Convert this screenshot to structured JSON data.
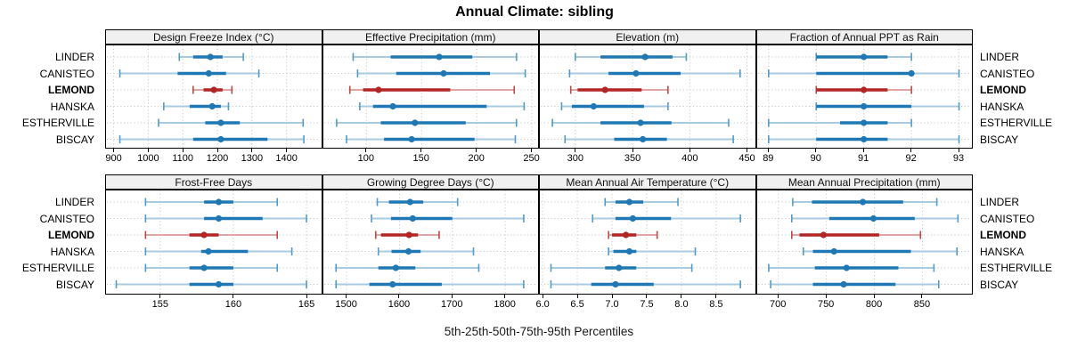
{
  "title": "Annual Climate: sibling",
  "caption": "5th-25th-50th-75th-95th Percentiles",
  "sites": [
    "LINDER",
    "CANISTEO",
    "LEMOND",
    "HANSKA",
    "ESTHERVILLE",
    "BISCAY"
  ],
  "highlight_site": "LEMOND",
  "colors": {
    "blue": "#1f78b4",
    "blue_light": "#a9cbe2",
    "blue_cap": "#4f9bcb",
    "red": "#b32424",
    "red_light": "#dfa6a3",
    "red_cap": "#bb4a44",
    "gridline": "#c9c9c9",
    "strip_bg": "#f0f0f0",
    "border": "#000000"
  },
  "percentiles_shown": [
    "5th",
    "25th",
    "50th",
    "75th",
    "95th"
  ],
  "chart_data": [
    {
      "type": "dotplot-percentile",
      "row": 0,
      "col": 0,
      "title": "Design Freeze Index (°C)",
      "ticks": [
        900,
        1000,
        1100,
        1200,
        1300,
        1400
      ],
      "tick_decimals": 0,
      "xlim": [
        878,
        1500
      ],
      "series": [
        {
          "name": "LINDER",
          "values": [
            1090,
            1130,
            1180,
            1215,
            1275
          ]
        },
        {
          "name": "CANISTEO",
          "values": [
            918,
            1085,
            1175,
            1225,
            1320
          ]
        },
        {
          "name": "LEMOND",
          "values": [
            1130,
            1160,
            1190,
            1215,
            1242
          ]
        },
        {
          "name": "HANSKA",
          "values": [
            1045,
            1120,
            1185,
            1210,
            1232
          ]
        },
        {
          "name": "ESTHERVILLE",
          "values": [
            1030,
            1165,
            1210,
            1265,
            1448
          ]
        },
        {
          "name": "BISCAY",
          "values": [
            918,
            1130,
            1210,
            1345,
            1450
          ]
        }
      ]
    },
    {
      "type": "dotplot-percentile",
      "row": 0,
      "col": 1,
      "title": "Effective Precipitation (mm)",
      "ticks": [
        100,
        150,
        200,
        250
      ],
      "tick_decimals": 0,
      "xlim": [
        61,
        256
      ],
      "series": [
        {
          "name": "LINDER",
          "values": [
            88,
            122,
            166,
            196,
            236
          ]
        },
        {
          "name": "CANISTEO",
          "values": [
            92,
            127,
            170,
            212,
            244
          ]
        },
        {
          "name": "LEMOND",
          "values": [
            85,
            97,
            111,
            176,
            234
          ]
        },
        {
          "name": "HANSKA",
          "values": [
            94,
            106,
            124,
            209,
            243
          ]
        },
        {
          "name": "ESTHERVILLE",
          "values": [
            73,
            113,
            144,
            190,
            236
          ]
        },
        {
          "name": "BISCAY",
          "values": [
            82,
            116,
            141,
            198,
            235
          ]
        }
      ]
    },
    {
      "type": "dotplot-percentile",
      "row": 0,
      "col": 2,
      "title": "Elevation (m)",
      "ticks": [
        300,
        350,
        400,
        450
      ],
      "tick_decimals": 0,
      "xlim": [
        269,
        457
      ],
      "series": [
        {
          "name": "LINDER",
          "values": [
            300,
            322,
            361,
            385,
            397
          ]
        },
        {
          "name": "CANISTEO",
          "values": [
            295,
            329,
            353,
            392,
            444
          ]
        },
        {
          "name": "LEMOND",
          "values": [
            296,
            302,
            326,
            358,
            381
          ]
        },
        {
          "name": "HANSKA",
          "values": [
            288,
            297,
            316,
            360,
            381
          ]
        },
        {
          "name": "ESTHERVILLE",
          "values": [
            280,
            322,
            357,
            384,
            434
          ]
        },
        {
          "name": "BISCAY",
          "values": [
            291,
            334,
            359,
            380,
            438
          ]
        }
      ]
    },
    {
      "type": "dotplot-percentile",
      "row": 0,
      "col": 3,
      "title": "Fraction of Annual PPT as Rain",
      "ticks": [
        89,
        90,
        91,
        92,
        93
      ],
      "tick_decimals": 0,
      "xlim": [
        88.76,
        93.28
      ],
      "series": [
        {
          "name": "LINDER",
          "values": [
            90,
            90,
            91,
            91.5,
            92
          ]
        },
        {
          "name": "CANISTEO",
          "values": [
            89,
            90,
            92,
            92,
            93
          ]
        },
        {
          "name": "LEMOND",
          "values": [
            90,
            90,
            91,
            91.5,
            92
          ]
        },
        {
          "name": "HANSKA",
          "values": [
            90,
            90,
            91,
            92,
            93
          ]
        },
        {
          "name": "ESTHERVILLE",
          "values": [
            89,
            90.5,
            91,
            91.5,
            92
          ]
        },
        {
          "name": "BISCAY",
          "values": [
            89,
            90,
            91,
            91.5,
            93
          ]
        }
      ]
    },
    {
      "type": "dotplot-percentile",
      "row": 1,
      "col": 0,
      "title": "Frost-Free Days",
      "ticks": [
        155,
        160,
        165
      ],
      "tick_decimals": 0,
      "xlim": [
        151.3,
        166
      ],
      "series": [
        {
          "name": "LINDER",
          "values": [
            154,
            158,
            159,
            160,
            163
          ]
        },
        {
          "name": "CANISTEO",
          "values": [
            154,
            158,
            159,
            162,
            165
          ]
        },
        {
          "name": "LEMOND",
          "values": [
            154,
            157,
            158,
            159,
            163
          ]
        },
        {
          "name": "HANSKA",
          "values": [
            154,
            157.8,
            158.3,
            161,
            164
          ]
        },
        {
          "name": "ESTHERVILLE",
          "values": [
            154,
            157,
            158,
            160,
            163
          ]
        },
        {
          "name": "BISCAY",
          "values": [
            152,
            157,
            159,
            160,
            165
          ]
        }
      ]
    },
    {
      "type": "dotplot-percentile",
      "row": 1,
      "col": 1,
      "title": "Growing Degree Days (°C)",
      "ticks": [
        1500,
        1600,
        1700,
        1800
      ],
      "tick_decimals": 0,
      "xlim": [
        1456,
        1863
      ],
      "series": [
        {
          "name": "LINDER",
          "values": [
            1558,
            1580,
            1620,
            1645,
            1710
          ]
        },
        {
          "name": "CANISTEO",
          "values": [
            1547,
            1584,
            1625,
            1700,
            1835
          ]
        },
        {
          "name": "LEMOND",
          "values": [
            1555,
            1565,
            1618,
            1635,
            1675
          ]
        },
        {
          "name": "HANSKA",
          "values": [
            1560,
            1585,
            1617,
            1640,
            1740
          ]
        },
        {
          "name": "ESTHERVILLE",
          "values": [
            1480,
            1560,
            1593,
            1630,
            1750
          ]
        },
        {
          "name": "BISCAY",
          "values": [
            1480,
            1543,
            1587,
            1680,
            1835
          ]
        }
      ]
    },
    {
      "type": "dotplot-percentile",
      "row": 1,
      "col": 2,
      "title": "Mean Annual Air Temperature (°C)",
      "ticks": [
        6.0,
        6.5,
        7.0,
        7.5,
        8.0,
        8.5
      ],
      "tick_decimals": 1,
      "xlim": [
        5.96,
        9.06
      ],
      "series": [
        {
          "name": "LINDER",
          "values": [
            6.9,
            7.05,
            7.25,
            7.45,
            7.95
          ]
        },
        {
          "name": "CANISTEO",
          "values": [
            6.72,
            7.05,
            7.3,
            7.85,
            8.85
          ]
        },
        {
          "name": "LEMOND",
          "values": [
            6.95,
            7.0,
            7.2,
            7.35,
            7.65
          ]
        },
        {
          "name": "HANSKA",
          "values": [
            6.95,
            7.02,
            7.25,
            7.35,
            8.2
          ]
        },
        {
          "name": "ESTHERVILLE",
          "values": [
            6.12,
            6.9,
            7.1,
            7.35,
            8.15
          ]
        },
        {
          "name": "BISCAY",
          "values": [
            6.12,
            6.7,
            7.05,
            7.6,
            8.85
          ]
        }
      ]
    },
    {
      "type": "dotplot-percentile",
      "row": 1,
      "col": 3,
      "title": "Mean Annual Precipitation (mm)",
      "ticks": [
        700,
        750,
        800,
        850
      ],
      "tick_decimals": 0,
      "xlim": [
        678,
        902
      ],
      "series": [
        {
          "name": "LINDER",
          "values": [
            715,
            735,
            788,
            830,
            865
          ]
        },
        {
          "name": "CANISTEO",
          "values": [
            714,
            753,
            799,
            842,
            887
          ]
        },
        {
          "name": "LEMOND",
          "values": [
            714,
            722,
            747,
            805,
            848
          ]
        },
        {
          "name": "HANSKA",
          "values": [
            726,
            736,
            758,
            838,
            886
          ]
        },
        {
          "name": "ESTHERVILLE",
          "values": [
            690,
            738,
            771,
            825,
            862
          ]
        },
        {
          "name": "BISCAY",
          "values": [
            692,
            736,
            768,
            822,
            867
          ]
        }
      ]
    }
  ]
}
